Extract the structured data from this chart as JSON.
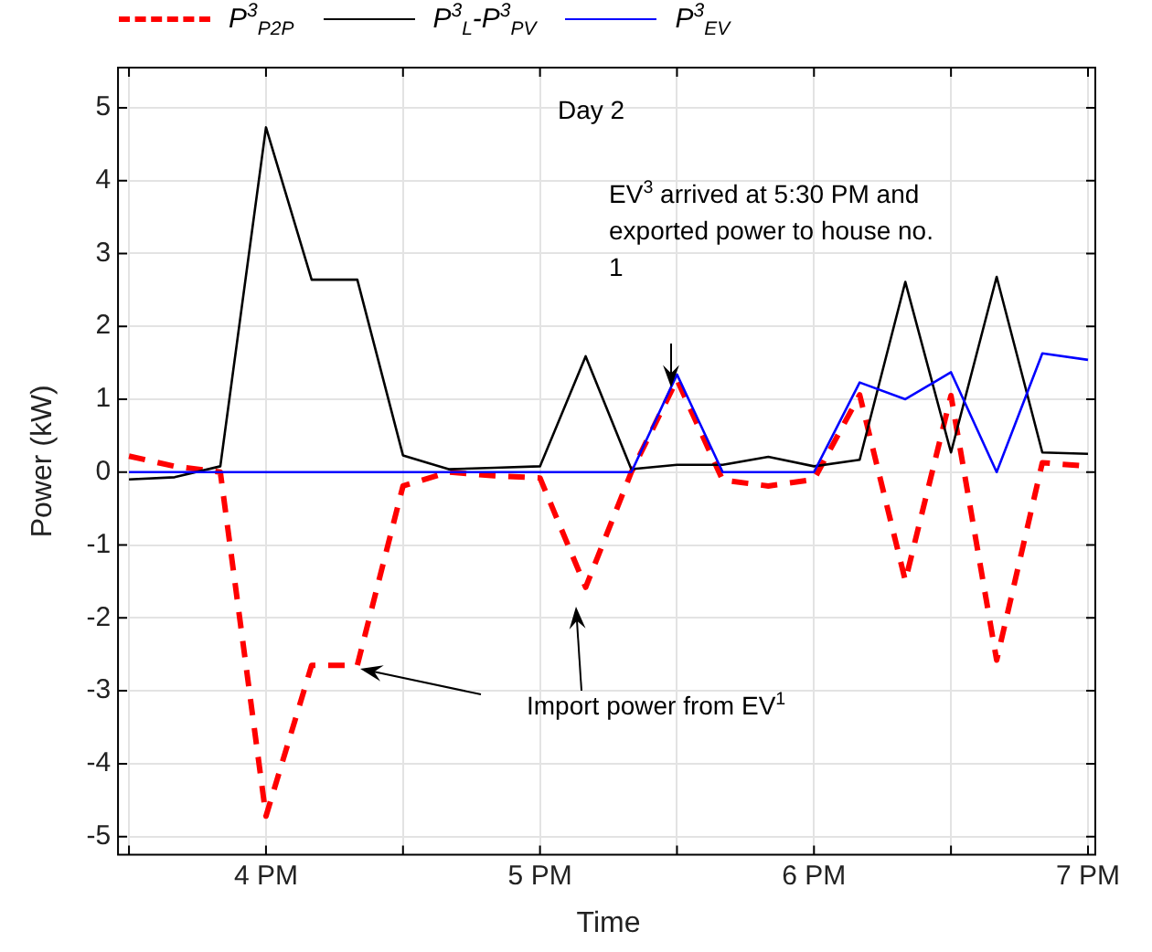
{
  "chart_data": {
    "type": "line",
    "xlabel": "Time",
    "ylabel": "Power (kW)",
    "categories": [
      null,
      null,
      null,
      "4 PM",
      null,
      null,
      null,
      null,
      null,
      "5 PM",
      null,
      null,
      null,
      null,
      null,
      "6 PM",
      null,
      null,
      null,
      null,
      null,
      "7 PM"
    ],
    "series": [
      {
        "name": "P$^{3}$$_{P2P}$",
        "color": "#ff0000",
        "line_style": "dashed",
        "values": [
          0.22,
          0.08,
          0.0,
          -4.72,
          -2.65,
          -2.65,
          -0.19,
          0.0,
          -0.05,
          -0.08,
          -1.58,
          0.0,
          1.27,
          -0.11,
          -0.19,
          -0.1,
          1.06,
          -1.49,
          1.05,
          -2.58,
          0.13,
          0.08
        ]
      },
      {
        "name": "P$^{3}$$_{L}$-P$^{3}$$_{PV}$",
        "color": "#000000",
        "line_style": "solid",
        "values": [
          -0.1,
          -0.07,
          0.08,
          4.73,
          2.64,
          2.64,
          0.23,
          0.04,
          0.06,
          0.08,
          1.59,
          0.04,
          0.1,
          0.1,
          0.21,
          0.08,
          0.17,
          2.61,
          0.27,
          2.68,
          0.27,
          0.25
        ]
      },
      {
        "name": "P$^{3}$$_{EV}$",
        "color": "#0000ff",
        "line_style": "solid",
        "values": [
          0,
          0,
          0,
          0,
          0,
          0,
          0,
          0,
          0,
          0,
          0,
          0,
          1.34,
          0,
          0,
          0,
          1.23,
          1.0,
          1.37,
          0,
          1.63,
          1.54
        ]
      }
    ],
    "ylim": [
      -5.25,
      5.55
    ],
    "yticks": [
      -5,
      -4,
      -3,
      -2,
      -1,
      0,
      1,
      2,
      3,
      4,
      5
    ],
    "grid": true,
    "legend": "top",
    "marker": "none",
    "annotations": [
      "Day 2",
      "EV$^{3}$ arrived at 5:30 PM and exported power to house no. 1",
      "Import power from EV$^{1}$"
    ]
  }
}
